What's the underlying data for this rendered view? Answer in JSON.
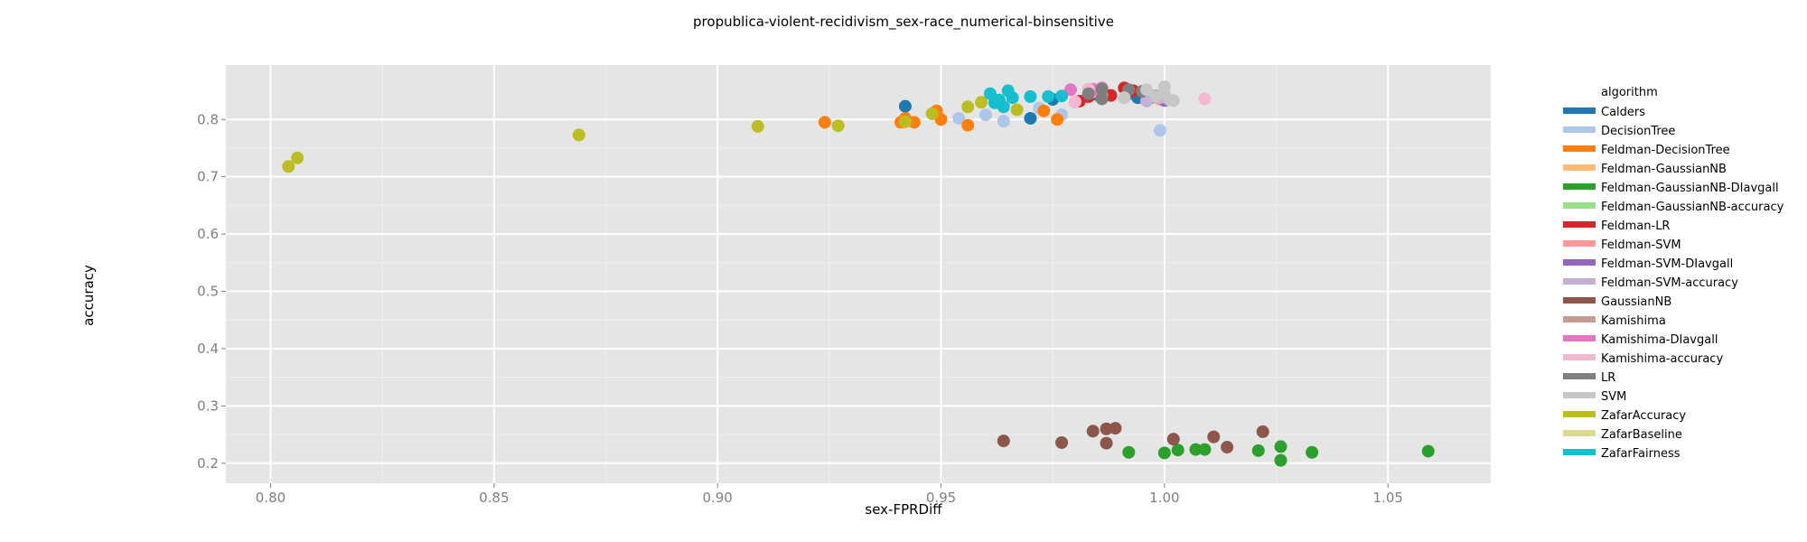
{
  "chart_data": {
    "type": "scatter",
    "title": "propublica-violent-recidivism_sex-race_numerical-binsensitive",
    "xlabel": "sex-FPRDiff",
    "ylabel": "accuracy",
    "xlim": [
      0.79,
      1.073
    ],
    "ylim": [
      0.165,
      0.895
    ],
    "xticks": [
      "0.80",
      "0.85",
      "0.90",
      "0.95",
      "1.00",
      "1.05"
    ],
    "xtick_values": [
      0.8,
      0.85,
      0.9,
      0.95,
      1.0,
      1.05
    ],
    "yticks": [
      "0.2",
      "0.3",
      "0.4",
      "0.5",
      "0.6",
      "0.7",
      "0.8"
    ],
    "ytick_values": [
      0.2,
      0.3,
      0.4,
      0.5,
      0.6,
      0.7,
      0.8
    ],
    "grid": true,
    "legend_title": "algorithm",
    "legend_position": "right",
    "series": [
      {
        "name": "Calders",
        "color": "#1f77b4",
        "points": [
          [
            0.942,
            0.823
          ],
          [
            0.97,
            0.802
          ],
          [
            0.975,
            0.835
          ],
          [
            0.985,
            0.843
          ],
          [
            0.992,
            0.845
          ],
          [
            0.994,
            0.838
          ],
          [
            0.997,
            0.84
          ]
        ]
      },
      {
        "name": "DecisionTree",
        "color": "#aec7e8",
        "points": [
          [
            0.95,
            0.8
          ],
          [
            0.954,
            0.802
          ],
          [
            0.96,
            0.808
          ],
          [
            0.964,
            0.797
          ],
          [
            0.972,
            0.82
          ],
          [
            0.977,
            0.808
          ],
          [
            0.98,
            0.83
          ],
          [
            0.999,
            0.781
          ]
        ]
      },
      {
        "name": "Feldman-DecisionTree",
        "color": "#ff7f0e",
        "points": [
          [
            0.924,
            0.795
          ],
          [
            0.941,
            0.795
          ],
          [
            0.942,
            0.802
          ],
          [
            0.944,
            0.795
          ],
          [
            0.949,
            0.815
          ],
          [
            0.95,
            0.8
          ],
          [
            0.956,
            0.79
          ],
          [
            0.973,
            0.815
          ],
          [
            0.976,
            0.8
          ]
        ]
      },
      {
        "name": "Feldman-GaussianNB",
        "color": "#ffbb78",
        "points": []
      },
      {
        "name": "Feldman-GaussianNB-DIavgall",
        "color": "#2ca02c",
        "points": [
          [
            0.992,
            0.219
          ],
          [
            1.0,
            0.218
          ],
          [
            1.003,
            0.223
          ],
          [
            1.007,
            0.224
          ],
          [
            1.009,
            0.224
          ],
          [
            1.021,
            0.222
          ],
          [
            1.026,
            0.229
          ],
          [
            1.026,
            0.205
          ],
          [
            1.033,
            0.219
          ],
          [
            1.059,
            0.221
          ]
        ]
      },
      {
        "name": "Feldman-GaussianNB-accuracy",
        "color": "#98df8a",
        "points": []
      },
      {
        "name": "Feldman-LR",
        "color": "#d62728",
        "points": [
          [
            0.981,
            0.832
          ],
          [
            0.983,
            0.84
          ],
          [
            0.988,
            0.842
          ],
          [
            0.991,
            0.855
          ],
          [
            0.993,
            0.85
          ]
        ]
      },
      {
        "name": "Feldman-SVM",
        "color": "#ff9896",
        "points": [
          [
            0.984,
            0.848
          ],
          [
            0.999,
            0.835
          ]
        ]
      },
      {
        "name": "Feldman-SVM-DIavgall",
        "color": "#9467bd",
        "points": [
          [
            0.997,
            0.838
          ],
          [
            1.0,
            0.833
          ]
        ]
      },
      {
        "name": "Feldman-SVM-accuracy",
        "color": "#c5b0d5",
        "points": [
          [
            0.996,
            0.832
          ],
          [
            0.999,
            0.838
          ]
        ]
      },
      {
        "name": "GaussianNB",
        "color": "#8c564b",
        "points": [
          [
            0.964,
            0.239
          ],
          [
            0.977,
            0.236
          ],
          [
            0.984,
            0.256
          ],
          [
            0.987,
            0.235
          ],
          [
            0.987,
            0.26
          ],
          [
            0.989,
            0.261
          ],
          [
            1.002,
            0.242
          ],
          [
            1.011,
            0.246
          ],
          [
            1.014,
            0.228
          ],
          [
            1.022,
            0.255
          ]
        ]
      },
      {
        "name": "Kamishima",
        "color": "#c49c94",
        "points": [
          [
            0.986,
            0.842
          ]
        ]
      },
      {
        "name": "Kamishima-DIavgall",
        "color": "#e377c2",
        "points": [
          [
            0.979,
            0.852
          ],
          [
            0.984,
            0.853
          ],
          [
            0.986,
            0.855
          ]
        ]
      },
      {
        "name": "Kamishima-accuracy",
        "color": "#f7b6d2",
        "points": [
          [
            0.98,
            0.831
          ],
          [
            0.983,
            0.853
          ],
          [
            1.009,
            0.836
          ]
        ]
      },
      {
        "name": "LR",
        "color": "#7f7f7f",
        "points": [
          [
            0.983,
            0.845
          ],
          [
            0.986,
            0.853
          ],
          [
            0.986,
            0.836
          ],
          [
            0.992,
            0.852
          ],
          [
            0.995,
            0.849
          ],
          [
            0.998,
            0.841
          ]
        ]
      },
      {
        "name": "SVM",
        "color": "#c7c7c7",
        "points": [
          [
            0.991,
            0.838
          ],
          [
            0.996,
            0.852
          ],
          [
            0.998,
            0.84
          ],
          [
            1.0,
            0.857
          ],
          [
            1.0,
            0.846
          ],
          [
            1.001,
            0.835
          ],
          [
            1.002,
            0.833
          ]
        ]
      },
      {
        "name": "ZafarAccuracy",
        "color": "#bcbd22",
        "points": [
          [
            0.804,
            0.718
          ],
          [
            0.806,
            0.733
          ],
          [
            0.869,
            0.773
          ],
          [
            0.909,
            0.788
          ],
          [
            0.927,
            0.789
          ],
          [
            0.942,
            0.796
          ],
          [
            0.948,
            0.81
          ],
          [
            0.956,
            0.822
          ],
          [
            0.959,
            0.83
          ],
          [
            0.967,
            0.817
          ]
        ]
      },
      {
        "name": "ZafarBaseline",
        "color": "#dbdb8d",
        "points": []
      },
      {
        "name": "ZafarFairness",
        "color": "#17becf",
        "points": [
          [
            0.961,
            0.845
          ],
          [
            0.962,
            0.829
          ],
          [
            0.963,
            0.834
          ],
          [
            0.964,
            0.822
          ],
          [
            0.965,
            0.85
          ],
          [
            0.966,
            0.838
          ],
          [
            0.97,
            0.84
          ],
          [
            0.974,
            0.84
          ],
          [
            0.977,
            0.841
          ]
        ]
      }
    ]
  }
}
